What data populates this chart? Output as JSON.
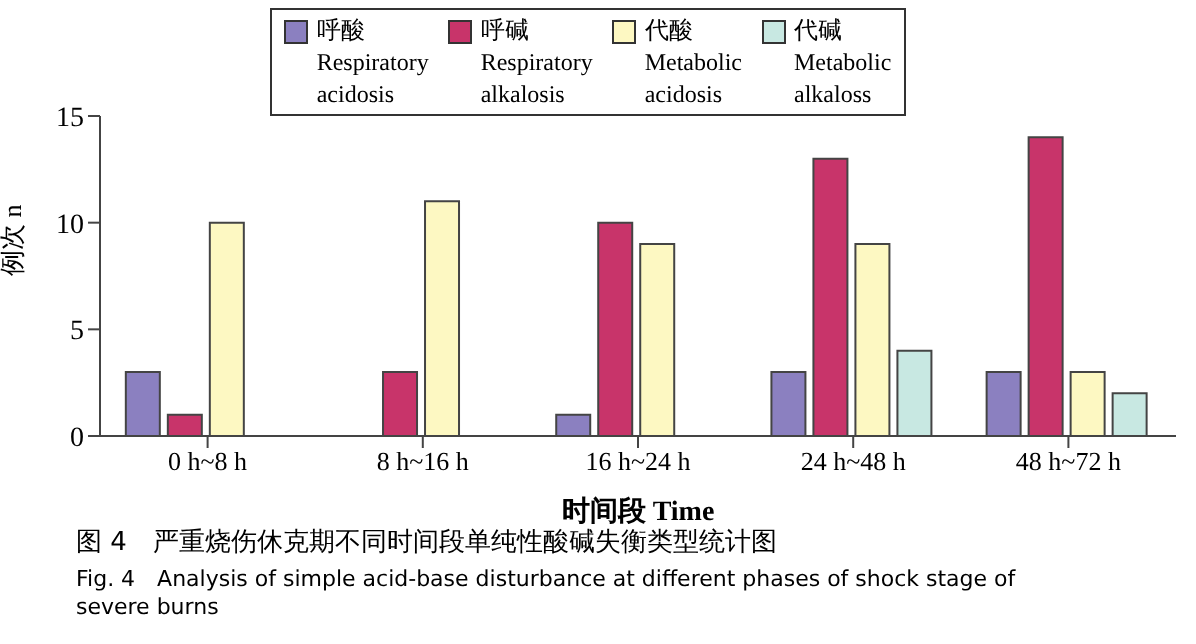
{
  "chart_data": {
    "type": "bar",
    "xlabel": "时间段 Time",
    "ylabel": "例次 n",
    "categories": [
      "0 h~8 h",
      "8 h~16 h",
      "16 h~24 h",
      "24 h~48 h",
      "48 h~72 h"
    ],
    "series": [
      {
        "name": "呼酸\nRespiratory\nacidosis",
        "color": "#8b80c0",
        "values": [
          3,
          0,
          1,
          3,
          3
        ]
      },
      {
        "name": "呼碱\nRespiratory\nalkalosis",
        "color": "#c8346a",
        "values": [
          1,
          3,
          10,
          13,
          14
        ]
      },
      {
        "name": "代酸\nMetabolic\nacidosis",
        "color": "#fdf8c2",
        "values": [
          10,
          11,
          9,
          9,
          3
        ]
      },
      {
        "name": "代碱\nMetabolic\nalkaloss",
        "color": "#c8e8e2",
        "values": [
          0,
          0,
          0,
          4,
          2
        ]
      }
    ],
    "ylim": [
      0,
      15
    ],
    "yticks": [
      0,
      5,
      10,
      15
    ],
    "legend": "top",
    "annotations": [
      "图 4　严重烧伤休克期不同时间段单纯性酸碱失衡类型统计图",
      "Fig. 4　Analysis of simple acid-base disturbance at different phases of shock stage of severe burns"
    ]
  }
}
